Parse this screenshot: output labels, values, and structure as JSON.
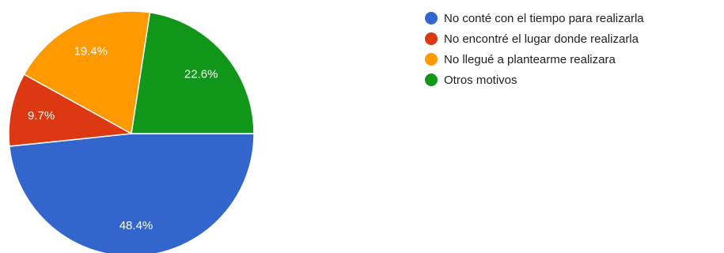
{
  "chart_data": {
    "type": "pie",
    "title": "",
    "legend_position": "right",
    "slices": [
      {
        "label": "No conté con el tiempo para realizarla",
        "value": 48.4,
        "value_label": "48.4%",
        "color": "#3366cc"
      },
      {
        "label": "No encontré el lugar donde realizarla",
        "value": 9.7,
        "value_label": "9.7%",
        "color": "#dc3912"
      },
      {
        "label": "No llegué a plantearme realizara",
        "value": 19.4,
        "value_label": "19.4%",
        "color": "#ff9900"
      },
      {
        "label": "Otros motivos",
        "value": 22.6,
        "value_label": "22.6%",
        "color": "#109618"
      }
    ]
  }
}
